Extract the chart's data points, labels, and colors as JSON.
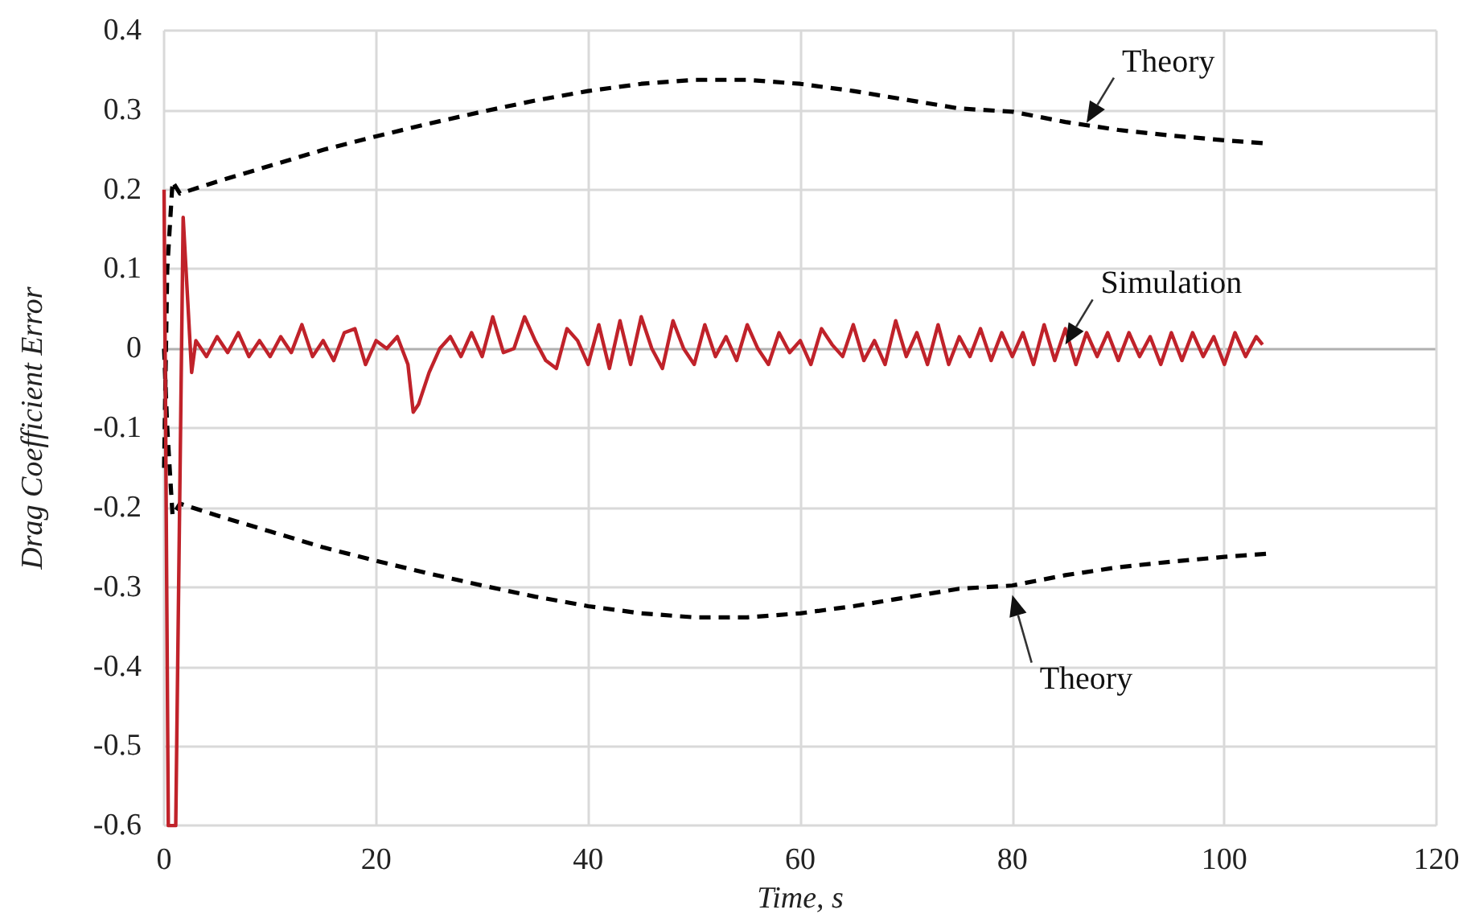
{
  "chart_data": {
    "type": "line",
    "xlabel": "Time, s",
    "ylabel": "Drag Coefficient Error",
    "xlim": [
      0,
      120
    ],
    "xticks": [
      0,
      20,
      40,
      60,
      80,
      100,
      120
    ],
    "ylim": [
      -0.6,
      0.4
    ],
    "yticks": [
      -0.6,
      -0.5,
      -0.4,
      -0.3,
      -0.2,
      -0.1,
      0,
      0.1,
      0.2,
      0.3,
      0.4
    ],
    "grid": true,
    "marker": "none",
    "series": [
      {
        "color": "#c0222a",
        "line_style": "solid",
        "x": [
          0,
          0.4,
          1.1,
          1.8,
          2.6,
          3,
          4,
          5,
          6,
          7,
          8,
          9,
          10,
          11,
          12,
          13,
          14,
          15,
          16,
          17,
          18,
          19,
          20,
          21,
          22,
          23,
          23.5,
          24,
          25,
          26,
          27,
          28,
          29,
          30,
          31,
          32,
          33,
          34,
          35,
          36,
          37,
          38,
          39,
          40,
          41,
          42,
          43,
          44,
          45,
          46,
          47,
          48,
          49,
          50,
          51,
          52,
          53,
          54,
          55,
          56,
          57,
          58,
          59,
          60,
          61,
          62,
          63,
          64,
          65,
          66,
          67,
          68,
          69,
          70,
          71,
          72,
          73,
          74,
          75,
          76,
          77,
          78,
          79,
          80,
          81,
          82,
          83,
          84,
          85,
          86,
          87,
          88,
          89,
          90,
          91,
          92,
          93,
          94,
          95,
          96,
          97,
          98,
          99,
          100,
          101,
          102,
          103,
          103.6
        ],
        "values": [
          0.2,
          -0.6,
          -0.6,
          0.165,
          -0.03,
          0.01,
          -0.01,
          0.015,
          -0.005,
          0.02,
          -0.01,
          0.01,
          -0.01,
          0.015,
          -0.005,
          0.03,
          -0.01,
          0.01,
          -0.015,
          0.02,
          0.025,
          -0.02,
          0.01,
          0,
          0.015,
          -0.02,
          -0.08,
          -0.07,
          -0.03,
          0,
          0.015,
          -0.01,
          0.02,
          -0.01,
          0.04,
          -0.005,
          0,
          0.04,
          0.01,
          -0.015,
          -0.025,
          0.025,
          0.01,
          -0.02,
          0.03,
          -0.025,
          0.035,
          -0.02,
          0.04,
          0,
          -0.025,
          0.035,
          0,
          -0.02,
          0.03,
          -0.01,
          0.015,
          -0.015,
          0.03,
          0,
          -0.02,
          0.02,
          -0.005,
          0.01,
          -0.02,
          0.025,
          0.005,
          -0.01,
          0.03,
          -0.015,
          0.01,
          -0.02,
          0.035,
          -0.01,
          0.02,
          -0.02,
          0.03,
          -0.02,
          0.015,
          -0.01,
          0.025,
          -0.015,
          0.02,
          -0.01,
          0.02,
          -0.02,
          0.03,
          -0.015,
          0.025,
          -0.02,
          0.02,
          -0.01,
          0.02,
          -0.015,
          0.02,
          -0.01,
          0.015,
          -0.02,
          0.02,
          -0.015,
          0.02,
          -0.01,
          0.015,
          -0.02,
          0.02,
          -0.01,
          0.015,
          0.005
        ]
      },
      {
        "color": "#000000",
        "line_style": "dashed",
        "x": [
          0,
          0.3,
          0.8,
          1.5,
          5,
          10,
          15,
          20,
          25,
          30,
          35,
          40,
          45,
          50,
          55,
          60,
          65,
          70,
          75,
          80,
          85,
          90,
          95,
          100,
          104
        ],
        "values": [
          -0.15,
          0.1,
          0.21,
          0.195,
          0.21,
          0.23,
          0.25,
          0.267,
          0.283,
          0.298,
          0.312,
          0.324,
          0.333,
          0.338,
          0.338,
          0.333,
          0.324,
          0.313,
          0.302,
          0.298,
          0.285,
          0.275,
          0.268,
          0.262,
          0.258
        ]
      },
      {
        "color": "#000000",
        "line_style": "dashed",
        "x": [
          0,
          0.3,
          0.8,
          1.5,
          5,
          10,
          15,
          20,
          25,
          30,
          35,
          40,
          45,
          50,
          55,
          60,
          65,
          70,
          75,
          80,
          85,
          90,
          95,
          100,
          104
        ],
        "values": [
          0,
          -0.1,
          -0.21,
          -0.195,
          -0.21,
          -0.23,
          -0.25,
          -0.267,
          -0.283,
          -0.298,
          -0.312,
          -0.324,
          -0.333,
          -0.338,
          -0.338,
          -0.333,
          -0.324,
          -0.313,
          -0.302,
          -0.298,
          -0.285,
          -0.275,
          -0.268,
          -0.262,
          -0.258
        ]
      }
    ],
    "annotations": [
      {
        "text": "Theory",
        "x": 87,
        "y": 0.284
      },
      {
        "text": "Simulation",
        "x": 85,
        "y": 0.005
      },
      {
        "text": "Theory",
        "x": 80,
        "y": -0.31
      }
    ]
  }
}
